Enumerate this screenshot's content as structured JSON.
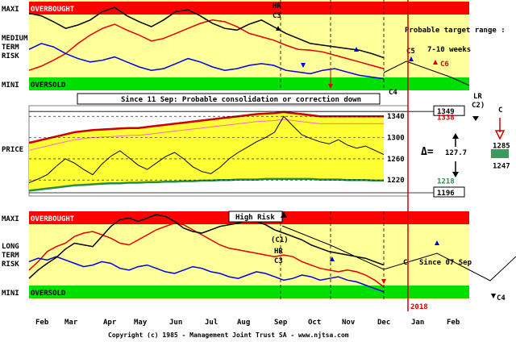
{
  "chart_data": {
    "type": "line",
    "title": "",
    "copyright": "Copyright (c) 1985 - Management Joint Trust SA - www.njtsa.com",
    "months": [
      "Feb",
      "Mar",
      "Apr",
      "May",
      "Jun",
      "Jul",
      "Aug",
      "Sep",
      "Oct",
      "Nov",
      "Dec",
      "Jan",
      "Feb"
    ],
    "year_label": "2018",
    "panels": {
      "medium_term_risk": {
        "label_lines": [
          "MEDIUM",
          "TERM",
          "RISK"
        ],
        "maxi_label": "MAXI",
        "mini_label": "MINI",
        "overbought_label": "OVERBOUGHT",
        "oversold_label": "OVERSOLD",
        "annotations": [
          "HR",
          "C3",
          "C4",
          "C5",
          "C6",
          "Probable target range :",
          "7-10 weeks"
        ],
        "series_black": [
          88,
          85,
          78,
          70,
          74,
          80,
          90,
          95,
          85,
          78,
          72,
          80,
          90,
          92,
          85,
          76,
          70,
          68,
          75,
          80,
          72,
          64,
          58,
          52,
          50,
          48,
          46,
          44,
          40,
          35
        ],
        "series_red": [
          20,
          25,
          32,
          40,
          52,
          62,
          70,
          75,
          68,
          62,
          55,
          58,
          64,
          70,
          76,
          80,
          78,
          72,
          64,
          60,
          56,
          50,
          45,
          44,
          42,
          38,
          34,
          30,
          26,
          22
        ],
        "series_blue": [
          45,
          52,
          48,
          40,
          34,
          30,
          32,
          36,
          30,
          24,
          20,
          22,
          28,
          34,
          30,
          24,
          20,
          22,
          26,
          28,
          26,
          20,
          18,
          16,
          20,
          22,
          18,
          14,
          12,
          10
        ]
      },
      "price": {
        "label": "PRICE",
        "banner": "Since 11 Sep: Probable consolidation or correction down",
        "price_levels": [
          {
            "value": 1349,
            "boxed": true,
            "color": "#000000"
          },
          {
            "value": 1340,
            "boxed": false,
            "color": "#000000"
          },
          {
            "value": 1338,
            "boxed": false,
            "color": "#d40000"
          },
          {
            "value": 1300,
            "boxed": false,
            "color": "#000000"
          },
          {
            "value": 1285,
            "boxed": false,
            "color": "#000000"
          },
          {
            "value": 1260,
            "boxed": false,
            "color": "#000000"
          },
          {
            "value": 1247,
            "boxed": false,
            "color": "#000000"
          },
          {
            "value": 1220,
            "boxed": false,
            "color": "#000000"
          },
          {
            "value": 1218,
            "boxed": false,
            "color": "#2a8a4a"
          },
          {
            "value": 1196,
            "boxed": true,
            "color": "#000000"
          }
        ],
        "delta_symbol": "Δ=",
        "delta_value": "127.7",
        "lr_label": "LR",
        "c2_label": "C2)",
        "c_label": "C",
        "ylim": [
          1190,
          1360
        ],
        "close": [
          1215,
          1222,
          1230,
          1246,
          1260,
          1252,
          1240,
          1230,
          1250,
          1265,
          1275,
          1262,
          1248,
          1240,
          1252,
          1264,
          1272,
          1260,
          1245,
          1236,
          1232,
          1244,
          1260,
          1272,
          1282,
          1292,
          1300,
          1310,
          1340,
          1322,
          1305,
          1298,
          1292,
          1288,
          1296,
          1286,
          1280,
          1284,
          1276,
          1268
        ],
        "upper_band": [
          1290,
          1294,
          1298,
          1302,
          1306,
          1310,
          1312,
          1314,
          1315,
          1316,
          1317,
          1318,
          1318,
          1320,
          1322,
          1324,
          1326,
          1328,
          1330,
          1332,
          1334,
          1336,
          1338,
          1340,
          1342,
          1344,
          1345,
          1346,
          1348,
          1346,
          1344,
          1342,
          1340,
          1340,
          1340,
          1340,
          1340,
          1340,
          1340,
          1340
        ],
        "lower_band": [
          1200,
          1202,
          1204,
          1206,
          1208,
          1210,
          1211,
          1212,
          1213,
          1214,
          1214,
          1215,
          1215,
          1216,
          1216,
          1217,
          1217,
          1218,
          1218,
          1219,
          1219,
          1220,
          1220,
          1221,
          1221,
          1221,
          1222,
          1222,
          1222,
          1222,
          1222,
          1222,
          1221,
          1221,
          1221,
          1220,
          1220,
          1220,
          1219,
          1219
        ]
      },
      "long_term_risk": {
        "label_lines": [
          "LONG",
          "TERM",
          "RISK"
        ],
        "maxi_label": "MAXI",
        "mini_label": "MINI",
        "overbought_label": "OVERBOUGHT",
        "oversold_label": "OVERSOLD",
        "high_risk_label": "High Risk",
        "annotations": [
          "(C1)",
          "HR",
          "C3",
          "C",
          "Since 07 Sep",
          "C4"
        ],
        "series_black": [
          20,
          30,
          38,
          45,
          55,
          62,
          60,
          58,
          70,
          82,
          90,
          92,
          88,
          92,
          96,
          94,
          88,
          80,
          76,
          74,
          78,
          82,
          84,
          86,
          90,
          88,
          84,
          78,
          74,
          70,
          66,
          60,
          56,
          52,
          50,
          48,
          46,
          44,
          40,
          36
        ],
        "series_red": [
          30,
          40,
          52,
          58,
          62,
          70,
          74,
          76,
          72,
          68,
          62,
          60,
          66,
          72,
          78,
          82,
          86,
          84,
          78,
          72,
          66,
          60,
          56,
          54,
          52,
          50,
          48,
          46,
          48,
          46,
          40,
          36,
          32,
          30,
          28,
          30,
          28,
          24,
          18,
          10
        ],
        "series_blue": [
          40,
          44,
          42,
          46,
          42,
          38,
          34,
          36,
          40,
          38,
          32,
          30,
          34,
          36,
          32,
          28,
          26,
          30,
          34,
          32,
          28,
          26,
          22,
          20,
          24,
          28,
          26,
          22,
          18,
          20,
          24,
          22,
          18,
          20,
          22,
          18,
          16,
          12,
          8,
          4
        ]
      }
    }
  }
}
